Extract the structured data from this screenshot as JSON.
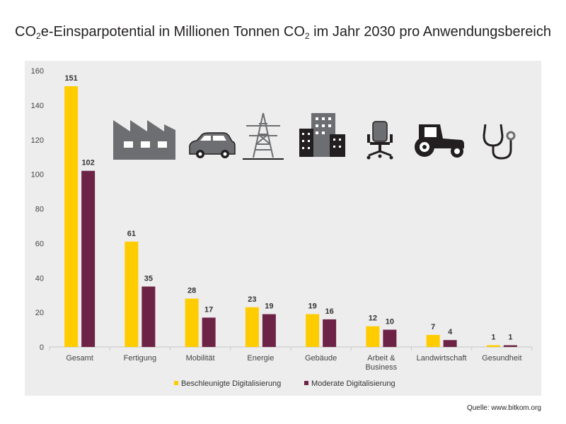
{
  "title": {
    "part1": "CO",
    "sub1": "2",
    "part2": "e-Einsparpotential in Millionen Tonnen CO",
    "sub2": "2",
    "part3": " im Jahr 2030 pro Anwendungsbereich"
  },
  "source": "Quelle: www.bitkom.org",
  "colors": {
    "beschleunigt": "#ffcc00",
    "moderat": "#6d2346",
    "icon": "#231f20",
    "panel": "#ededed"
  },
  "icons": [
    "factory-icon",
    "car-icon",
    "power-pylon-icon",
    "buildings-icon",
    "office-chair-icon",
    "tractor-icon",
    "stethoscope-icon"
  ],
  "chart_data": {
    "type": "bar",
    "title": "CO2e-Einsparpotential in Millionen Tonnen CO2 im Jahr 2030 pro Anwendungsbereich",
    "categories": [
      [
        "Gesamt"
      ],
      [
        "Fertigung"
      ],
      [
        "Mobilität"
      ],
      [
        "Energie"
      ],
      [
        "Gebäude"
      ],
      [
        "Arbeit &",
        "Business"
      ],
      [
        "Landwirtschaft"
      ],
      [
        "Gesundheit"
      ]
    ],
    "series": [
      {
        "name": "Beschleunigte Digitalisierung",
        "values": [
          151,
          61,
          28,
          23,
          19,
          12,
          7,
          1
        ]
      },
      {
        "name": "Moderate Digitalisierung",
        "values": [
          102,
          35,
          17,
          19,
          16,
          10,
          4,
          1
        ]
      }
    ],
    "ylim": [
      0,
      160
    ],
    "yticks": [
      0,
      20,
      40,
      60,
      80,
      100,
      120,
      140,
      160
    ],
    "grid": false,
    "legend": "bottom-center"
  }
}
